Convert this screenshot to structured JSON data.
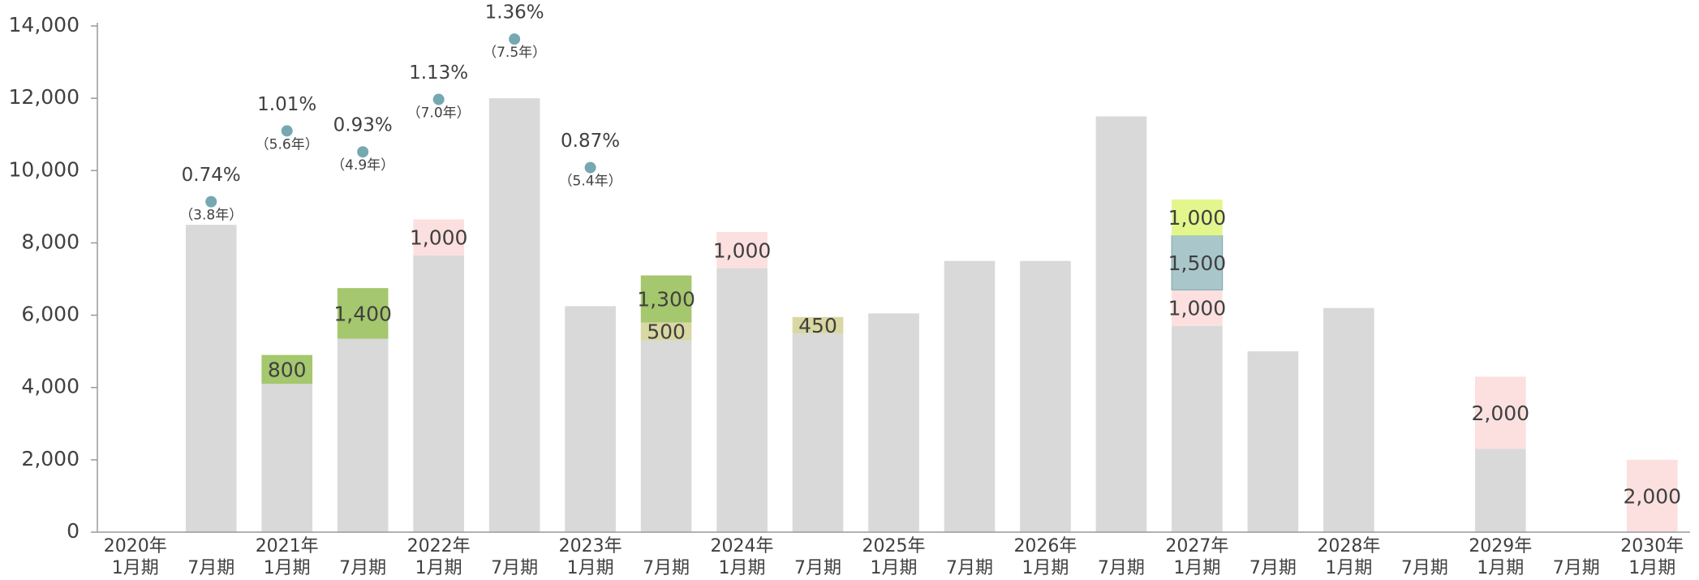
{
  "chart_data": {
    "type": "bar",
    "stacked": true,
    "categories": [
      [
        "2020年",
        "1月期"
      ],
      [
        "7月期"
      ],
      [
        "2021年",
        "1月期"
      ],
      [
        "7月期"
      ],
      [
        "2022年",
        "1月期"
      ],
      [
        "7月期"
      ],
      [
        "2023年",
        "1月期"
      ],
      [
        "7月期"
      ],
      [
        "2024年",
        "1月期"
      ],
      [
        "7月期"
      ],
      [
        "2025年",
        "1月期"
      ],
      [
        "7月期"
      ],
      [
        "2026年",
        "1月期"
      ],
      [
        "7月期"
      ],
      [
        "2027年",
        "1月期"
      ],
      [
        "7月期"
      ],
      [
        "2028年",
        "1月期"
      ],
      [
        "7月期"
      ],
      [
        "2029年",
        "1月期"
      ],
      [
        "7月期"
      ],
      [
        "2030年",
        "1月期"
      ]
    ],
    "ylim": [
      0,
      14000
    ],
    "yticks": [
      0,
      {
        "value": 2000,
        "label": "2,000"
      },
      {
        "value": 4000,
        "label": "4,000"
      },
      {
        "value": 6000,
        "label": "6,000"
      },
      {
        "value": 8000,
        "label": "8,000"
      },
      {
        "value": 10000,
        "label": "10,000"
      },
      {
        "value": 12000,
        "label": "12,000"
      },
      {
        "value": 14000,
        "label": "14,000"
      }
    ],
    "y2lim": [
      -0.52,
      1.41
    ],
    "grid": false,
    "series": [
      {
        "color": "#d9d9d9",
        "values": [
          null,
          8500,
          4100,
          5350,
          7650,
          12000,
          6250,
          5300,
          7300,
          5500,
          6050,
          7500,
          7500,
          11500,
          5700,
          5000,
          6200,
          null,
          2300,
          null,
          null
        ]
      },
      {
        "color": "#fbe0df",
        "values": [
          null,
          null,
          null,
          null,
          1000,
          null,
          null,
          null,
          1000,
          null,
          null,
          null,
          null,
          null,
          1000,
          null,
          null,
          null,
          2000,
          null,
          2000
        ],
        "value_labels": [
          null,
          null,
          null,
          null,
          "1,000",
          null,
          null,
          null,
          "1,000",
          null,
          null,
          null,
          null,
          null,
          "1,000",
          null,
          null,
          null,
          "2,000",
          null,
          "2,000"
        ]
      },
      {
        "color": "#d9d7a2",
        "values": [
          null,
          null,
          null,
          null,
          null,
          null,
          null,
          500,
          null,
          450,
          null,
          null,
          null,
          null,
          null,
          null,
          null,
          null,
          null,
          null,
          null
        ],
        "value_labels": [
          null,
          null,
          null,
          null,
          null,
          null,
          null,
          "500",
          null,
          "450",
          null,
          null,
          null,
          null,
          null,
          null,
          null,
          null,
          null,
          null,
          null
        ]
      },
      {
        "color": "#a5c76d",
        "values": [
          null,
          null,
          800,
          1400,
          null,
          null,
          null,
          1300,
          null,
          null,
          null,
          null,
          null,
          null,
          null,
          null,
          null,
          null,
          null,
          null,
          null
        ],
        "value_labels": [
          null,
          null,
          "800",
          "1,400",
          null,
          null,
          null,
          "1,300",
          null,
          null,
          null,
          null,
          null,
          null,
          null,
          null,
          null,
          null,
          null,
          null,
          null
        ]
      },
      {
        "color": "#a9c6cb",
        "values": [
          null,
          null,
          null,
          null,
          null,
          null,
          null,
          null,
          null,
          null,
          null,
          null,
          null,
          null,
          1500,
          null,
          null,
          null,
          null,
          null,
          null
        ],
        "value_labels": [
          null,
          null,
          null,
          null,
          null,
          null,
          null,
          null,
          null,
          null,
          null,
          null,
          null,
          null,
          "1,500",
          null,
          null,
          null,
          null,
          null,
          null
        ]
      },
      {
        "color": "#e2f68c",
        "values": [
          null,
          null,
          null,
          null,
          null,
          null,
          null,
          null,
          null,
          null,
          null,
          null,
          null,
          null,
          1000,
          null,
          null,
          null,
          null,
          null,
          null
        ],
        "value_labels": [
          null,
          null,
          null,
          null,
          null,
          null,
          null,
          null,
          null,
          null,
          null,
          null,
          null,
          null,
          "1,000",
          null,
          null,
          null,
          null,
          null,
          null
        ]
      }
    ],
    "points": {
      "type": "scatter",
      "axis": "y2",
      "color": "#76a8b1",
      "values": [
        null,
        0.74,
        1.01,
        0.93,
        1.13,
        1.36,
        0.87,
        null,
        null,
        null,
        null,
        null,
        null,
        null,
        null,
        null,
        null,
        null,
        null,
        null,
        null
      ],
      "value_labels": [
        null,
        "0.74%",
        "1.01%",
        "0.93%",
        "1.13%",
        "1.36%",
        "0.87%",
        null,
        null,
        null,
        null,
        null,
        null,
        null,
        null,
        null,
        null,
        null,
        null,
        null,
        null
      ],
      "annotations": [
        null,
        "（3.8年）",
        "（5.6年）",
        "（4.9年）",
        "（7.0年）",
        "（7.5年）",
        "（5.4年）",
        null,
        null,
        null,
        null,
        null,
        null,
        null,
        null,
        null,
        null,
        null,
        null,
        null,
        null
      ]
    }
  }
}
